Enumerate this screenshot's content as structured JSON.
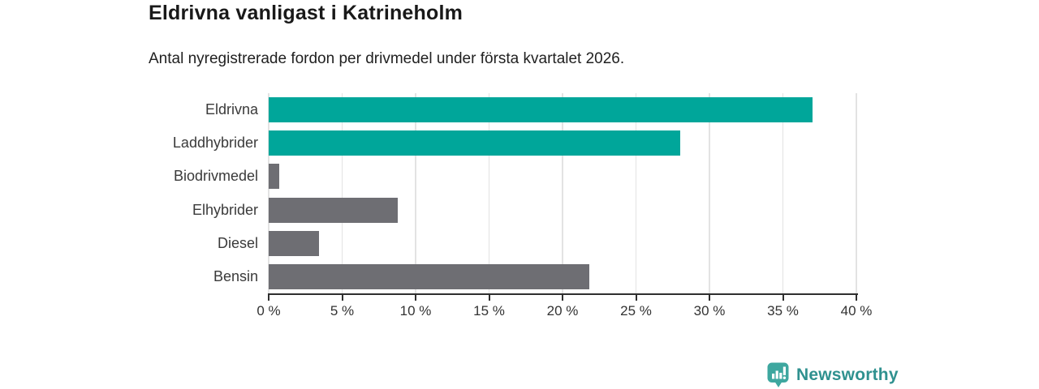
{
  "title": "Eldrivna vanligast i Katrineholm",
  "subtitle": "Antal nyregistrerade fordon per drivmedel under första kvartalet 2026.",
  "chart_data": {
    "type": "bar",
    "orientation": "horizontal",
    "title": "Eldrivna vanligast i Katrineholm",
    "subtitle": "Antal nyregistrerade fordon per drivmedel under första kvartalet 2026.",
    "categories": [
      "Eldrivna",
      "Laddhybrider",
      "Biodrivmedel",
      "Elhybrider",
      "Diesel",
      "Bensin"
    ],
    "values": [
      37,
      28,
      0.7,
      8.8,
      3.4,
      21.8
    ],
    "unit": "%",
    "xlim": [
      0,
      40
    ],
    "xticks": [
      0,
      5,
      10,
      15,
      20,
      25,
      30,
      35,
      40
    ],
    "xtick_labels": [
      "0 %",
      "5 %",
      "10 %",
      "15 %",
      "20 %",
      "25 %",
      "30 %",
      "35 %",
      "40 %"
    ],
    "bar_colors": [
      "teal",
      "teal",
      "gray",
      "gray",
      "gray",
      "gray"
    ],
    "grid": true,
    "legend": false
  },
  "colors": {
    "teal": "#00a69a",
    "gray": "#6e6e73",
    "gridline": "#e3e3e3",
    "axis_line": "#2f2f2f",
    "tick_label": "#333333",
    "category_label": "#3a3a3a",
    "title": "#191919",
    "subtitle": "#212121",
    "logo_text": "#2f918f",
    "logo_icon": "#3ea79f"
  },
  "footer": {
    "brand": "Newsworthy",
    "logo_icon_name": "newsworthy-bar-chart-bubble-icon"
  }
}
